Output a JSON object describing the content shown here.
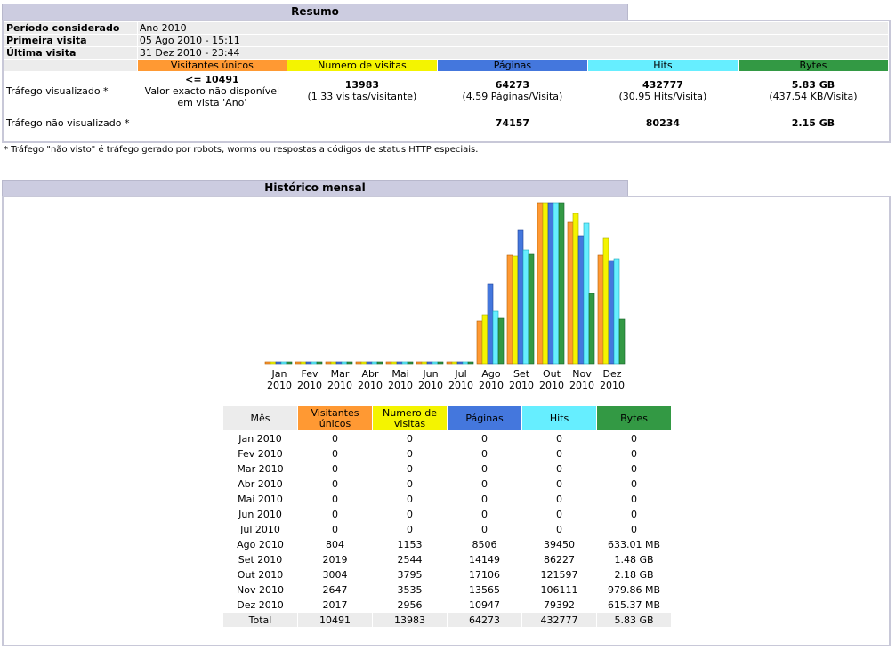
{
  "summary": {
    "title": "Resumo",
    "period_label": "Período considerado",
    "period_value": "Ano 2010",
    "first_visit_label": "Primeira visita",
    "first_visit_value": "05 Ago 2010 - 15:11",
    "last_visit_label": "Última visita",
    "last_visit_value": "31 Dez 2010 - 23:44",
    "headers": [
      "Visitantes únicos",
      "Numero de visitas",
      "Páginas",
      "Hits",
      "Bytes"
    ],
    "header_colors": [
      "#ff9933",
      "#f4f400",
      "#4477dd",
      "#66eeff",
      "#339944"
    ],
    "viewed_label": "Tráfego visualizado *",
    "viewed": {
      "visitors_main": "<= 10491",
      "visitors_note": "Valor exacto não disponível em vista 'Ano'",
      "visits_main": "13983",
      "visits_sub": "(1.33 visitas/visitante)",
      "pages_main": "64273",
      "pages_sub": "(4.59 Páginas/Visita)",
      "hits_main": "432777",
      "hits_sub": "(30.95 Hits/Visita)",
      "bytes_main": "5.83 GB",
      "bytes_sub": "(437.54 KB/Visita)"
    },
    "notviewed_label": "Tráfego não visualizado *",
    "notviewed": {
      "pages": "74157",
      "hits": "80234",
      "bytes": "2.15 GB"
    },
    "footnote": "* Tráfego \"não visto\" é tráfego gerado por robots, worms ou respostas a códigos de status HTTP especiais."
  },
  "monthly": {
    "title": "Histórico mensal",
    "table_headers": [
      "Mês",
      "Visitantes únicos",
      "Numero de visitas",
      "Páginas",
      "Hits",
      "Bytes"
    ],
    "total_label": "Total",
    "totals": [
      "10491",
      "13983",
      "64273",
      "432777",
      "5.83 GB"
    ]
  },
  "chart_data": {
    "type": "bar",
    "categories": [
      "Jan 2010",
      "Fev 2010",
      "Mar 2010",
      "Abr 2010",
      "Mai 2010",
      "Jun 2010",
      "Jul 2010",
      "Ago 2010",
      "Set 2010",
      "Out 2010",
      "Nov 2010",
      "Dez 2010"
    ],
    "month_short": [
      "Jan",
      "Fev",
      "Mar",
      "Abr",
      "Mai",
      "Jun",
      "Jul",
      "Ago",
      "Set",
      "Out",
      "Nov",
      "Dez"
    ],
    "year": "2010",
    "series": [
      {
        "name": "Visitantes únicos",
        "color": "#ff9933",
        "values": [
          0,
          0,
          0,
          0,
          0,
          0,
          0,
          804,
          2019,
          3004,
          2647,
          2017
        ]
      },
      {
        "name": "Numero de visitas",
        "color": "#f4f400",
        "values": [
          0,
          0,
          0,
          0,
          0,
          0,
          0,
          1153,
          2544,
          3795,
          3535,
          2956
        ]
      },
      {
        "name": "Páginas",
        "color": "#4477dd",
        "values": [
          0,
          0,
          0,
          0,
          0,
          0,
          0,
          8506,
          14149,
          17106,
          13565,
          10947
        ]
      },
      {
        "name": "Hits",
        "color": "#66eeff",
        "values": [
          0,
          0,
          0,
          0,
          0,
          0,
          0,
          39450,
          86227,
          121597,
          106111,
          79392
        ]
      },
      {
        "name": "Bytes",
        "color": "#339944",
        "values": [
          0,
          0,
          0,
          0,
          0,
          0,
          0,
          633.01,
          1515.52,
          2232.32,
          979.86,
          615.37
        ]
      }
    ],
    "bytes_display": [
      "0",
      "0",
      "0",
      "0",
      "0",
      "0",
      "0",
      "633.01 MB",
      "1.48 GB",
      "2.18 GB",
      "979.86 MB",
      "615.37 MB"
    ]
  }
}
